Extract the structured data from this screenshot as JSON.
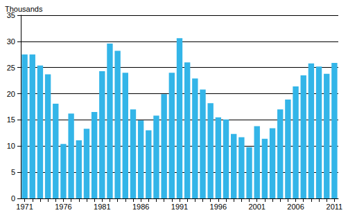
{
  "chart_data": {
    "type": "bar",
    "y_label": "Thousands",
    "categories": [
      "1971",
      null,
      null,
      null,
      null,
      "1976",
      null,
      null,
      null,
      null,
      "1981",
      null,
      null,
      null,
      null,
      "1986",
      null,
      null,
      null,
      null,
      "1991",
      null,
      null,
      null,
      null,
      "1996",
      null,
      null,
      null,
      null,
      "2001",
      null,
      null,
      null,
      null,
      "2006",
      null,
      null,
      null,
      null,
      "2011"
    ],
    "values": [
      27.5,
      27.5,
      25.4,
      23.7,
      18.1,
      10.4,
      16.2,
      11.1,
      13.3,
      16.5,
      24.3,
      29.6,
      28.2,
      24.0,
      17.0,
      14.9,
      13.0,
      15.8,
      19.9,
      24.0,
      30.6,
      26.0,
      22.9,
      20.8,
      18.2,
      15.5,
      15.1,
      12.3,
      11.7,
      9.8,
      13.8,
      11.4,
      13.4,
      17.0,
      18.9,
      21.4,
      23.5,
      25.8,
      25.2,
      23.8,
      25.9
    ],
    "color": "#33b5e8",
    "ylim": [
      0,
      35
    ],
    "yticks": [
      0,
      5,
      10,
      15,
      20,
      25,
      30,
      35
    ],
    "grid": true
  }
}
